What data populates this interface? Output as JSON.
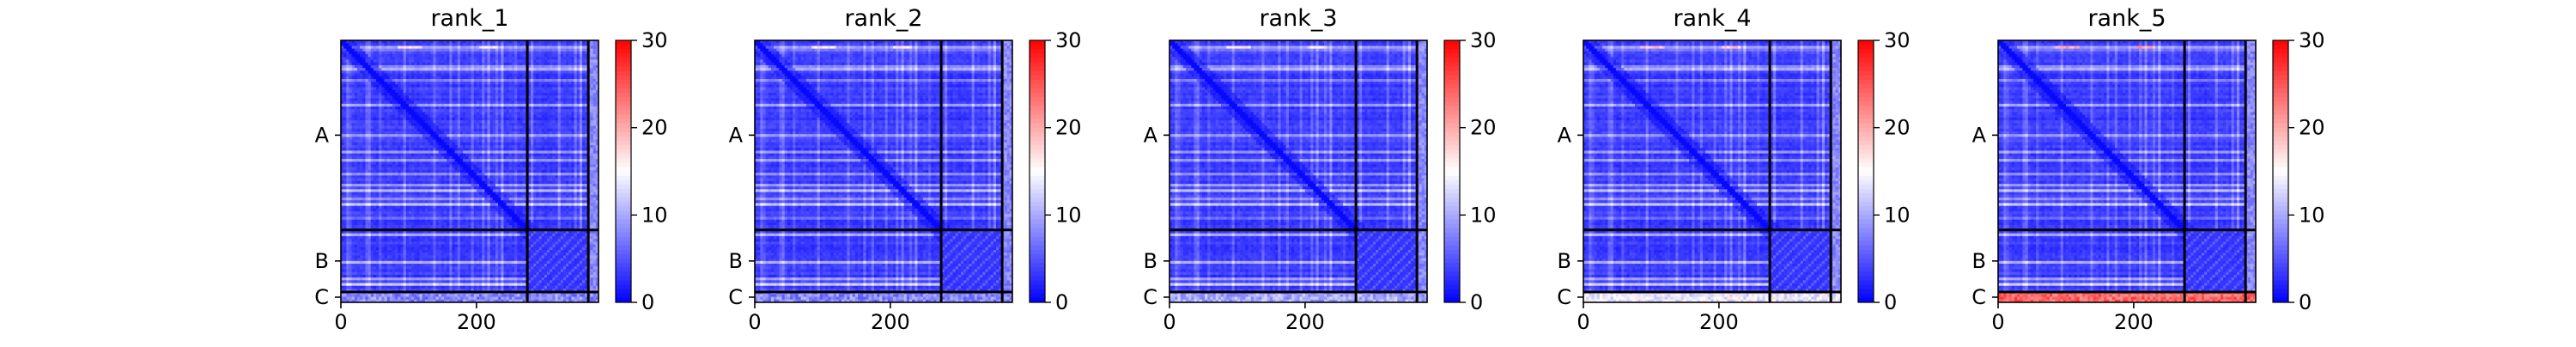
{
  "chart_data": [
    {
      "type": "heatmap",
      "title": "rank_1",
      "xlabel": "",
      "ylabel": "",
      "x_ticks": [
        "0",
        "200"
      ],
      "y_ticks": [
        "A",
        "B",
        "C"
      ],
      "colorbar": {
        "range": [
          0,
          30
        ],
        "ticks": [
          "0",
          "10",
          "20",
          "30"
        ],
        "colormap": [
          "#0000ff",
          "#ffffff",
          "#ff0000"
        ]
      },
      "matrix_size": 380,
      "chain_boundaries": [
        275,
        365
      ],
      "chain_c_level": 8,
      "accent_level": 14
    },
    {
      "type": "heatmap",
      "title": "rank_2",
      "xlabel": "",
      "ylabel": "",
      "x_ticks": [
        "0",
        "200"
      ],
      "y_ticks": [
        "A",
        "B",
        "C"
      ],
      "colorbar": {
        "range": [
          0,
          30
        ],
        "ticks": [
          "0",
          "10",
          "20",
          "30"
        ],
        "colormap": [
          "#0000ff",
          "#ffffff",
          "#ff0000"
        ]
      },
      "matrix_size": 380,
      "chain_boundaries": [
        275,
        365
      ],
      "chain_c_level": 8,
      "accent_level": 14
    },
    {
      "type": "heatmap",
      "title": "rank_3",
      "xlabel": "",
      "ylabel": "",
      "x_ticks": [
        "0",
        "200"
      ],
      "y_ticks": [
        "A",
        "B",
        "C"
      ],
      "colorbar": {
        "range": [
          0,
          30
        ],
        "ticks": [
          "0",
          "10",
          "20",
          "30"
        ],
        "colormap": [
          "#0000ff",
          "#ffffff",
          "#ff0000"
        ]
      },
      "matrix_size": 380,
      "chain_boundaries": [
        275,
        365
      ],
      "chain_c_level": 10,
      "accent_level": 14
    },
    {
      "type": "heatmap",
      "title": "rank_4",
      "xlabel": "",
      "ylabel": "",
      "x_ticks": [
        "0",
        "200"
      ],
      "y_ticks": [
        "A",
        "B",
        "C"
      ],
      "colorbar": {
        "range": [
          0,
          30
        ],
        "ticks": [
          "0",
          "10",
          "20",
          "30"
        ],
        "colormap": [
          "#0000ff",
          "#ffffff",
          "#ff0000"
        ]
      },
      "matrix_size": 380,
      "chain_boundaries": [
        275,
        365
      ],
      "chain_c_level": 14,
      "accent_level": 16
    },
    {
      "type": "heatmap",
      "title": "rank_5",
      "xlabel": "",
      "ylabel": "",
      "x_ticks": [
        "0",
        "200"
      ],
      "y_ticks": [
        "A",
        "B",
        "C"
      ],
      "colorbar": {
        "range": [
          0,
          30
        ],
        "ticks": [
          "0",
          "10",
          "20",
          "30"
        ],
        "colormap": [
          "#0000ff",
          "#ffffff",
          "#ff0000"
        ]
      },
      "matrix_size": 380,
      "chain_boundaries": [
        275,
        365
      ],
      "chain_c_level": 24,
      "accent_level": 18
    }
  ]
}
